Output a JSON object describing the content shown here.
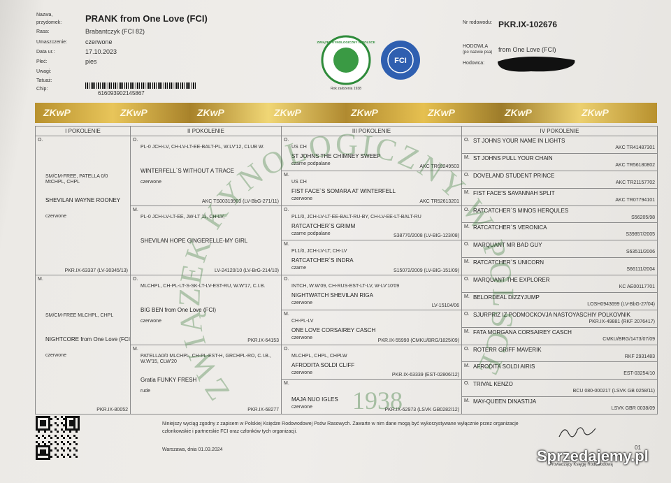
{
  "header": {
    "fields": [
      {
        "label": "Nazwa, przydomek:",
        "value": "PRANK from One Love (FCI)"
      },
      {
        "label": "Rasa:",
        "value": "Brabantczyk (FCI 82)"
      },
      {
        "label": "Umaszczenie:",
        "value": "czerwone"
      },
      {
        "label": "Data ur.:",
        "value": "17.10.2023"
      },
      {
        "label": "Płeć:",
        "value": "pies"
      },
      {
        "label": "Uwagi:",
        "value": ""
      },
      {
        "label": "Tatuaż:",
        "value": ""
      },
      {
        "label": "Chip:",
        "value": "616093902145867"
      }
    ],
    "registry": {
      "label": "Nr rodowodu:",
      "value": "PKR.IX-102676"
    },
    "kennel": {
      "label": "HODOWLA",
      "sublabel": "(po nazwie psa)",
      "value": "from One Love (FCI)"
    },
    "breeder": {
      "label": "Hodowca:"
    },
    "logo_zkwp": {
      "ring": "ZWIĄZEK KYNOLOGICZNY W POLSCE",
      "founded": "Rok założenia 1938"
    },
    "logo_fci": "FCI"
  },
  "hologram": "ZKwP",
  "watermark": {
    "ring": "ZWIĄZEK KYNOLOGICZNY W POLSCE",
    "year": "1938"
  },
  "table": {
    "headers": [
      "I POKOLENIE",
      "II POKOLENIE",
      "III POKOLENIE",
      "IV POKOLENIE"
    ],
    "generations": [
      [
        {
          "sex": "O.",
          "titles": "SM/CM-FREE, PATELLA 0/0 MtCHPL, CHPL",
          "name": "SHEVILAN WAYNE ROONEY",
          "color": "czerwone",
          "reg": "PKR.IX-63337 (LV-30345/13)"
        },
        {
          "sex": "M.",
          "titles": "SM/CM-FREE MLCHPL, CHPL",
          "name": "NIGHTCORE from One Love (FCI)",
          "color": "czerwone",
          "reg": "PKR.IX-80052"
        }
      ],
      [
        {
          "sex": "O.",
          "titles": "PL-0 JCH-LV, CH-LV-LT-EE-BALT-PL, W.LV'12, CLUB W.",
          "name": "WINTERFELL`S WITHOUT A TRACE",
          "color": "czerwone",
          "reg": "AKC TS00319903 (LV-BbG-271/11)"
        },
        {
          "sex": "M.",
          "titles": "PL-0 JCH-LV-LT-EE, JW-LT 11, CH-LV,",
          "name": "SHEVILAN HOPE GINGERELLE-MY GIRL",
          "color": "",
          "reg": "LV-24120/10 (LV-BrG-214/10)"
        },
        {
          "sex": "O.",
          "titles": "MLCHPL, CH-PL-LT-S-SK-LT-LV-EST-RU, W.W'17, C.I.B.",
          "name": "BIG BEN from One Love (FCI)",
          "color": "czerwone",
          "reg": "PKR.IX-64153"
        },
        {
          "sex": "M.",
          "titles": "PATELLA0/0 MLCHPL, CH-PL-EST-H, GRCHPL-RO, C.I.B., W.W'15, CLW'20",
          "name": "Gratia FUNKY FRESH",
          "color": "rude",
          "reg": "PKR.IX-68277"
        }
      ],
      [
        {
          "sex": "O.",
          "titles": "US CH",
          "name": "ST JOHNS THE CHIMNEY SWEEP",
          "color": "czarne podpalane",
          "reg": "AKC TR69249503"
        },
        {
          "sex": "M.",
          "titles": "US CH",
          "name": "FIST FACE`S SOMARA AT WINTERFELL",
          "color": "czerwone",
          "reg": "AKC TR52613201"
        },
        {
          "sex": "O.",
          "titles": "PL1/0, JCH-LV-LT-EE-BALT-RU-BY, CH-LV-EE-LT-BALT-RU",
          "name": "RATCATCHER`S GRIMM",
          "color": "czarne podpalane",
          "reg": "S38770/2008 (LV-BIG-123/08)"
        },
        {
          "sex": "M.",
          "titles": "PL1/0, JCH-LV-LT, CH-LV",
          "name": "RATCATCHER`S INDRA",
          "color": "czarne",
          "reg": "S15072/2009 (LV-BIG-151/09)"
        },
        {
          "sex": "O.",
          "titles": "INTCH, W.W'09, CH-RUS-EST-LT-LV, W-LV'10'09",
          "name": "NIGHTWATCH SHEVILAN RIGA",
          "color": "czerwone",
          "reg": "LV-15104/06"
        },
        {
          "sex": "M.",
          "titles": "CH-PL-LV",
          "name": "ONE LOVE CORSAIREY CASCH",
          "color": "czerwone",
          "reg": "PKR.IX-55990 (CMKU/BRG/1825/09)"
        },
        {
          "sex": "O.",
          "titles": "MLCHPL, CHPL, CHPLW",
          "name": "AFRODITA SOLDI CLIFF",
          "color": "czerwone",
          "reg": "PKR.IX-63339 (EST-02806/12)"
        },
        {
          "sex": "M.",
          "titles": "",
          "name": "MAJA NUO IGLES",
          "color": "czerwone",
          "reg": "PKR.IX-62973 (LSVK GB0282/12)"
        }
      ],
      [
        {
          "sex": "O.",
          "name": "ST JOHNS YOUR NAME IN LIGHTS",
          "reg": "AKC TR41487301"
        },
        {
          "sex": "M.",
          "name": "ST JOHNS PULL YOUR CHAIN",
          "reg": "AKC TR56180802"
        },
        {
          "sex": "O.",
          "name": "DOVELAND STUDENT PRINCE",
          "reg": "AKC TR21157702"
        },
        {
          "sex": "M.",
          "name": "FIST FACE'S SAVANNAH SPLIT",
          "reg": "AKC TR07794101"
        },
        {
          "sex": "O.",
          "name": "RATCATCHER`S MINOS HERQULES",
          "reg": "S56205/98"
        },
        {
          "sex": "M.",
          "name": "RATCATCHER`S VERONICA",
          "reg": "S39857/2005"
        },
        {
          "sex": "O.",
          "name": "MARQUANT MR BAD GUY",
          "reg": "S63511/2006"
        },
        {
          "sex": "M.",
          "name": "RATCATCHER`S UNICORN",
          "reg": "S66111/2004"
        },
        {
          "sex": "O.",
          "name": "MARQUANT THE EXPLORER",
          "reg": "KC AE00117701"
        },
        {
          "sex": "M.",
          "name": "BELORDEAL DIZZYJUMP",
          "reg": "LOSH0943699 (LV-BbG-27/04)"
        },
        {
          "sex": "O.",
          "name": "SJURPRIZ IZ PODMOCKOVJA NASTOYASCHIY POLKOVNIK",
          "reg": "PKR.IX-49881 (RKF 2076417)"
        },
        {
          "sex": "M.",
          "name": "FATA MORGANA CORSAIREY CASCH",
          "reg": "CMKU/BRG/1473/07/09"
        },
        {
          "sex": "O.",
          "name": "ROTERR GRIFF MAVERIK",
          "reg": "RKF 2931483"
        },
        {
          "sex": "M.",
          "name": "AFRODITA SOLDI AIRIS",
          "reg": "EST-03254/10"
        },
        {
          "sex": "O.",
          "name": "TRIVAL KENZO",
          "reg": "BCU 080-000217 (LSVK GB 0258/11)"
        },
        {
          "sex": "M.",
          "name": "MAY-QUEEN DINASTIJA",
          "reg": "LSVK GBR 0038/09"
        }
      ]
    ]
  },
  "footer": {
    "notice": "Niniejszy wyciąg zgodny z zapisem w Polskiej Księdze Rodowodowej Psów Rasowych. Zawarte w nim dane mogą być wykorzystywane wyłącznie przez organizacje członkowskie i partnerskie FCI oraz członków tych organizacji.",
    "place_date": "Warszawa, dnia 01.03.2024",
    "signatory": "Prowadzący Księgę Rodowodową",
    "page": "01"
  },
  "site_watermark": "Sprzedajemy.pl"
}
